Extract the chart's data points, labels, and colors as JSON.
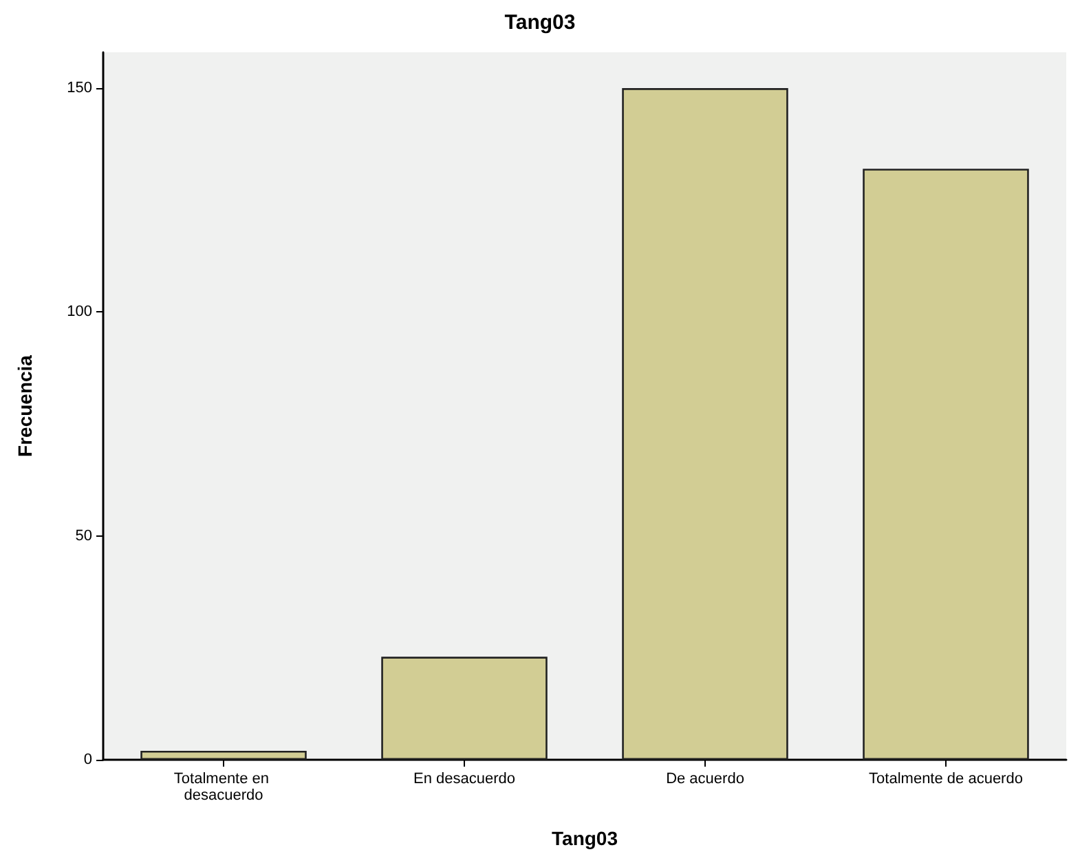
{
  "chart_data": {
    "type": "bar",
    "title": "Tang03",
    "xlabel": "Tang03",
    "ylabel": "Frecuencia",
    "categories": [
      "Totalmente en desacuerdo",
      "En desacuerdo",
      "De acuerdo",
      "Totalmente de acuerdo"
    ],
    "values": [
      2,
      23,
      150,
      132
    ],
    "color": "#d2cd94",
    "ylim": [
      0,
      158
    ],
    "yticks": [
      0,
      50,
      100,
      150
    ],
    "grid": false
  }
}
